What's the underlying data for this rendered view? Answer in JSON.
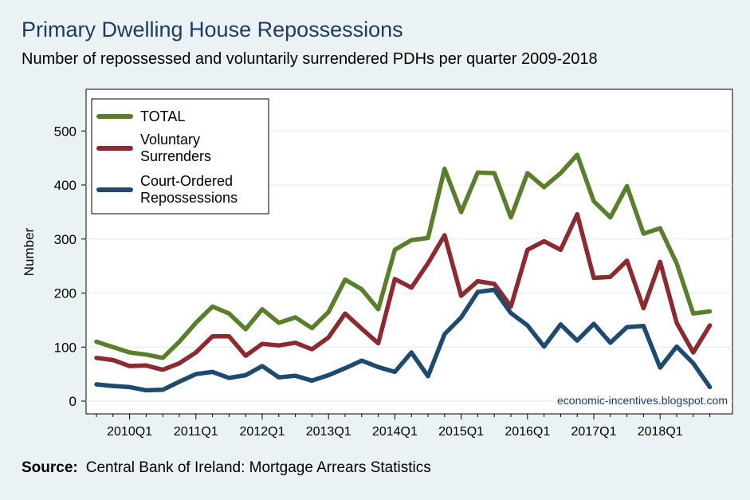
{
  "title": "Primary Dwelling House Repossessions",
  "subtitle": "Number of repossessed and voluntarily surrendered PDHs per quarter 2009-2018",
  "source": {
    "label": "Source:",
    "text": "Central Bank of Ireland: Mortgage Arrears Statistics"
  },
  "watermark": "economic-incentives.blogspot.com",
  "chart_data": {
    "type": "line",
    "ylabel": "Number",
    "xlabel": "",
    "ylim": [
      0,
      570
    ],
    "yticks": [
      0,
      100,
      200,
      300,
      400,
      500
    ],
    "grid": true,
    "legend_position": "top-left",
    "x": [
      "2009Q3",
      "2009Q4",
      "2010Q1",
      "2010Q2",
      "2010Q3",
      "2010Q4",
      "2011Q1",
      "2011Q2",
      "2011Q3",
      "2011Q4",
      "2012Q1",
      "2012Q2",
      "2012Q3",
      "2012Q4",
      "2013Q1",
      "2013Q2",
      "2013Q3",
      "2013Q4",
      "2014Q1",
      "2014Q2",
      "2014Q3",
      "2014Q4",
      "2015Q1",
      "2015Q2",
      "2015Q3",
      "2015Q4",
      "2016Q1",
      "2016Q2",
      "2016Q3",
      "2016Q4",
      "2017Q1",
      "2017Q2",
      "2017Q3",
      "2017Q4",
      "2018Q1",
      "2018Q2",
      "2018Q3",
      "2018Q4"
    ],
    "xtick_labels": [
      "2010Q1",
      "2011Q1",
      "2012Q1",
      "2013Q1",
      "2014Q1",
      "2015Q1",
      "2016Q1",
      "2017Q1",
      "2018Q1"
    ],
    "series": [
      {
        "name": "TOTAL",
        "color": "#5a7f2b",
        "values": [
          110,
          100,
          90,
          86,
          80,
          110,
          145,
          175,
          162,
          133,
          170,
          145,
          155,
          135,
          165,
          225,
          207,
          170,
          280,
          298,
          302,
          430,
          350,
          423,
          422,
          340,
          422,
          396,
          422,
          456,
          370,
          340,
          398,
          310,
          320,
          255,
          162,
          166
        ]
      },
      {
        "name": "Voluntary Surrenders",
        "color": "#8b2a2f",
        "values": [
          80,
          76,
          65,
          66,
          58,
          70,
          90,
          120,
          120,
          84,
          106,
          103,
          108,
          96,
          118,
          162,
          134,
          107,
          226,
          210,
          255,
          307,
          195,
          222,
          217,
          175,
          280,
          296,
          280,
          346,
          228,
          230,
          260,
          172,
          258,
          145,
          90,
          140
        ]
      },
      {
        "name": "Court-Ordered Repossessions",
        "color": "#1d4a6e",
        "values": [
          31,
          28,
          26,
          20,
          21,
          36,
          50,
          54,
          43,
          48,
          65,
          44,
          47,
          38,
          48,
          61,
          75,
          63,
          54,
          90,
          46,
          124,
          155,
          202,
          206,
          163,
          140,
          101,
          142,
          112,
          143,
          108,
          137,
          139,
          62,
          101,
          70,
          26
        ]
      }
    ]
  }
}
